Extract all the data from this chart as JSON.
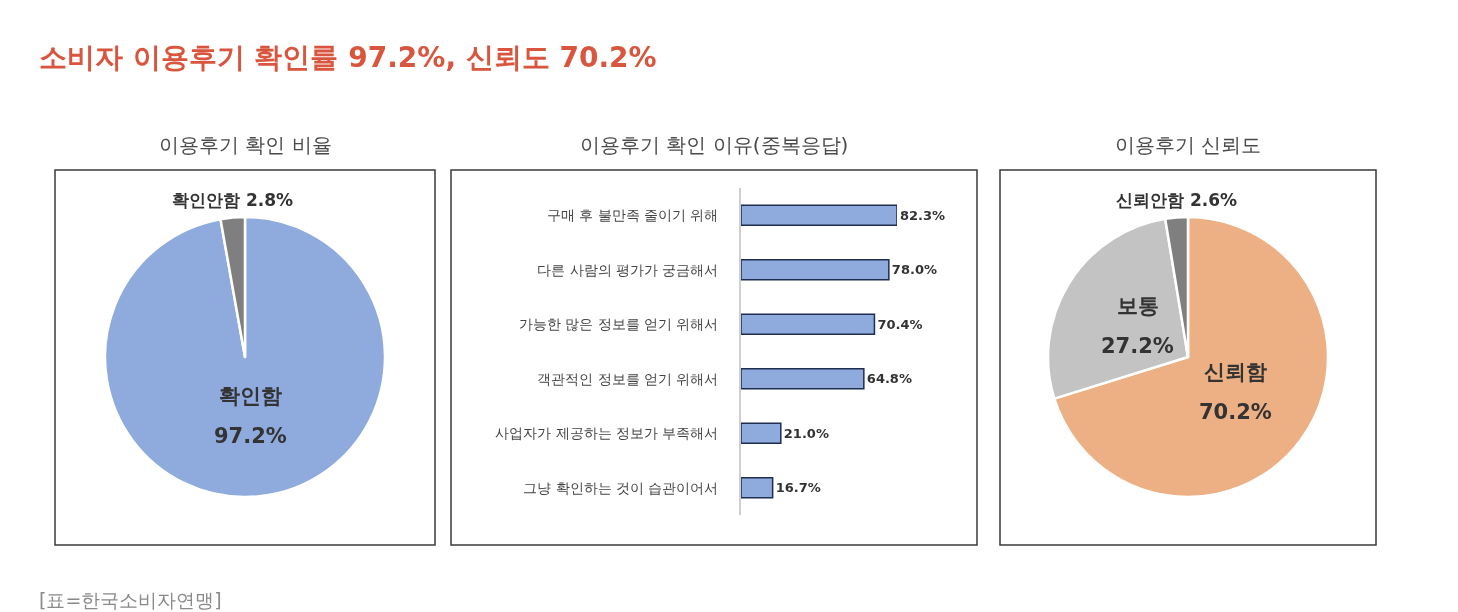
{
  "chart_data": [
    {
      "type": "other",
      "title": "소비자 이용후기 확인률 97.2%, 신뢰도 70.2%",
      "annotations": [
        "[표=한국소비자연맹]"
      ]
    },
    {
      "type": "pie",
      "title": "이용후기 확인 비율",
      "categories": [
        "확인함",
        "확인안함"
      ],
      "values": [
        97.2,
        2.8
      ],
      "colors": [
        "#8faadc",
        "#7f7f7f"
      ],
      "value_labels": [
        "97.2%",
        "2.8%"
      ]
    },
    {
      "type": "bar",
      "title": "이용후기 확인 이유(중복응답)",
      "orientation": "horizontal",
      "categories": [
        "구매 후 불만족 줄이기 위해",
        "다른 사람의 평가가 궁금해서",
        "가능한 많은 정보를 얻기 위해서",
        "객관적인 정보를 얻기 위해서",
        "사업자가 제공하는 정보가 부족해서",
        "그냥 확인하는 것이 습관이어서"
      ],
      "values": [
        82.3,
        78.0,
        70.4,
        64.8,
        21.0,
        16.7
      ],
      "color": "#8faadc",
      "value_labels": [
        "82.3%",
        "78.0%",
        "70.4%",
        "64.8%",
        "21.0%",
        "16.7%"
      ],
      "tick_labels": "y"
    },
    {
      "type": "pie",
      "title": "이용후기 신뢰도",
      "categories": [
        "신뢰함",
        "보통",
        "신뢰안함"
      ],
      "values": [
        70.2,
        27.2,
        2.6
      ],
      "colors": [
        "#edb084",
        "#c3c3c3",
        "#7f7f7f"
      ],
      "value_labels": [
        "70.2%",
        "27.2%",
        "2.6%"
      ]
    }
  ]
}
